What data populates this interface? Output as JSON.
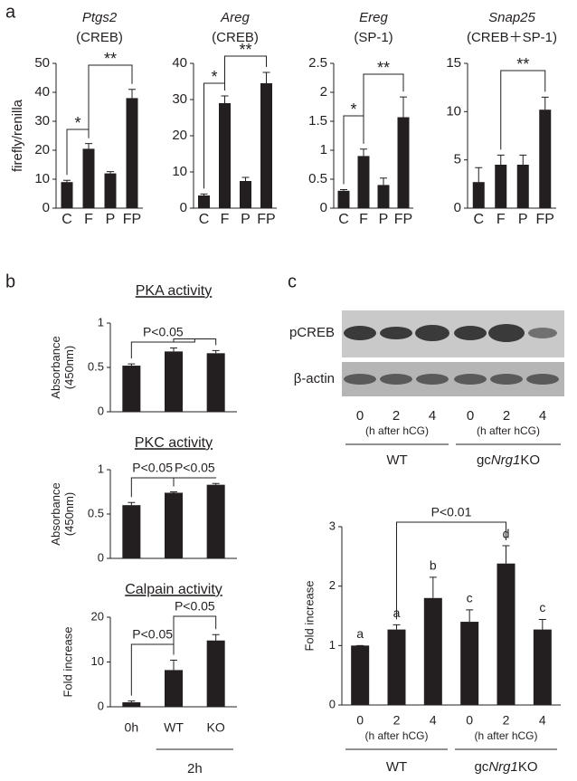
{
  "panel_labels": [
    "a",
    "b",
    "c"
  ],
  "chart_data": [
    {
      "type": "bar",
      "title": "Ptgs2",
      "subtitle": "(CREB)",
      "y_label": "firefly/renilla",
      "categories": [
        "C",
        "F",
        "P",
        "FP"
      ],
      "values": [
        9,
        20.5,
        12,
        38
      ],
      "errors": [
        0.6,
        1.8,
        0.6,
        3
      ],
      "color": "#231f20",
      "ylim": [
        0,
        50
      ],
      "yticks": [
        0,
        10,
        20,
        30,
        40,
        50
      ],
      "annotations": [
        "*",
        "**"
      ]
    },
    {
      "type": "bar",
      "title": "Areg",
      "subtitle": "(CREB)",
      "categories": [
        "C",
        "F",
        "P",
        "FP"
      ],
      "values": [
        3.5,
        29,
        7.5,
        34.5
      ],
      "errors": [
        0.4,
        2,
        1,
        3
      ],
      "color": "#231f20",
      "ylim": [
        0,
        40
      ],
      "yticks": [
        0,
        10,
        20,
        30,
        40
      ],
      "annotations": [
        "*",
        "**"
      ]
    },
    {
      "type": "bar",
      "title": "Ereg",
      "subtitle": "(SP-1)",
      "categories": [
        "C",
        "F",
        "P",
        "FP"
      ],
      "values": [
        0.3,
        0.9,
        0.4,
        1.57
      ],
      "errors": [
        0.02,
        0.12,
        0.12,
        0.35
      ],
      "color": "#231f20",
      "ylim": [
        0,
        2.5
      ],
      "yticks": [
        0,
        0.5,
        1,
        1.5,
        2,
        2.5
      ],
      "annotations": [
        "*",
        "**"
      ]
    },
    {
      "type": "bar",
      "title": "Snap25",
      "subtitle": "(CREB＋SP-1)",
      "categories": [
        "C",
        "F",
        "P",
        "FP"
      ],
      "values": [
        2.7,
        4.5,
        4.5,
        10.2
      ],
      "errors": [
        1.5,
        1,
        1,
        1.3
      ],
      "color": "#231f20",
      "ylim": [
        0,
        15
      ],
      "yticks": [
        0,
        5,
        10,
        15
      ],
      "annotations": [
        "**"
      ]
    },
    {
      "type": "bar",
      "title": "PKA activity",
      "y_label": [
        "Absorbance",
        "(450nm)"
      ],
      "values": [
        0.52,
        0.68,
        0.66
      ],
      "errors": [
        0.02,
        0.04,
        0.03
      ],
      "color": "#231f20",
      "ylim": [
        0,
        1
      ],
      "yticks": [
        0,
        0.5,
        1
      ],
      "annotations": [
        "P<0.05"
      ]
    },
    {
      "type": "bar",
      "title": "PKC activity",
      "y_label": [
        "Absorbance",
        "(450nm)"
      ],
      "values": [
        0.6,
        0.74,
        0.83
      ],
      "errors": [
        0.03,
        0.01,
        0.015
      ],
      "color": "#231f20",
      "ylim": [
        0,
        1
      ],
      "yticks": [
        0,
        0.5,
        1
      ],
      "annotations": [
        "P<0.05",
        "P<0.05"
      ]
    },
    {
      "type": "bar",
      "title": "Calpain activity",
      "y_label": "Fold increase",
      "categories": [
        "0h",
        "WT",
        "KO"
      ],
      "values": [
        1,
        8.2,
        14.8
      ],
      "errors": [
        0.3,
        2.2,
        1.3
      ],
      "color": "#231f20",
      "ylim": [
        0,
        20
      ],
      "yticks": [
        0,
        10,
        20
      ],
      "annotations": [
        "P<0.05",
        "P<0.05"
      ],
      "groups": [
        {
          "label": "2h"
        }
      ]
    },
    {
      "type": "bar",
      "y_label": "Fold increase",
      "categories": [
        "0",
        "2",
        "4",
        "0",
        "2",
        "4"
      ],
      "values": [
        1,
        1.27,
        1.8,
        1.4,
        2.38,
        1.27
      ],
      "errors": [
        0,
        0.08,
        0.35,
        0.2,
        0.3,
        0.17
      ],
      "letters": [
        "a",
        "a",
        "b",
        "c",
        "d",
        "c"
      ],
      "color": "#231f20",
      "ylim": [
        0,
        3
      ],
      "yticks": [
        0,
        1,
        2,
        3
      ],
      "annotations": [
        "P<0.01"
      ],
      "groups": [
        {
          "label": "WT",
          "note": "(h after hCG)"
        },
        {
          "label_parts": [
            "gc",
            "Nrg1",
            "KO"
          ],
          "note": "(h after hCG)"
        }
      ]
    }
  ],
  "blot": {
    "rows": [
      "pCREB",
      "β-actin"
    ],
    "lanes": [
      "0",
      "2",
      "4",
      "0",
      "2",
      "4"
    ],
    "groups": [
      {
        "label": "WT",
        "note": "(h after hCG)"
      },
      {
        "label_parts": [
          "gc",
          "Nrg1",
          "KO"
        ],
        "note": "(h after hCG)"
      }
    ]
  }
}
